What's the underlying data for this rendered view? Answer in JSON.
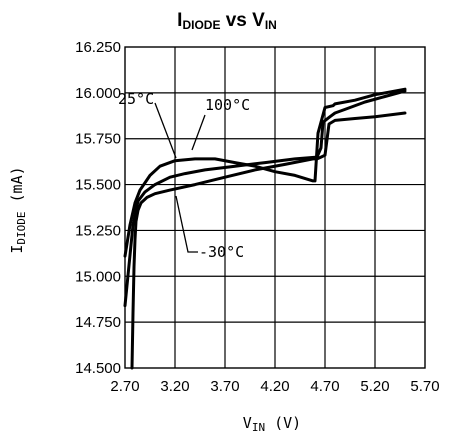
{
  "chart_data": {
    "type": "line",
    "title": {
      "main": "I",
      "sub": "DIODE",
      "mid": " vs V",
      "sub2": "IN"
    },
    "ylabel": {
      "main": "I",
      "sub": "DIODE",
      "unit": " (mA)"
    },
    "xlabel": {
      "main": "V",
      "sub": "IN",
      "unit": "  (V)"
    },
    "x_ticks": [
      2.7,
      3.2,
      3.7,
      4.2,
      4.7,
      5.2,
      5.7
    ],
    "x_tick_labels": [
      "2.70",
      "3.20",
      "3.70",
      "4.20",
      "4.70",
      "5.20",
      "5.70"
    ],
    "y_ticks": [
      14.5,
      14.75,
      15.0,
      15.25,
      15.5,
      15.75,
      16.0,
      16.25
    ],
    "y_tick_labels": [
      "14.500",
      "14.750",
      "15.000",
      "15.250",
      "15.500",
      "15.750",
      "16.000",
      "16.250"
    ],
    "xlim": [
      2.7,
      5.7
    ],
    "ylim": [
      14.5,
      16.25
    ],
    "grid": true,
    "series": [
      {
        "name": "25°C",
        "x": [
          2.7,
          2.78,
          2.83,
          2.9,
          3.0,
          3.15,
          3.3,
          3.5,
          3.8,
          4.1,
          4.4,
          4.62,
          4.66,
          4.68,
          4.75,
          4.8,
          4.9,
          5.1,
          5.3,
          5.5
        ],
        "y": [
          14.84,
          15.28,
          15.41,
          15.46,
          15.5,
          15.54,
          15.56,
          15.58,
          15.6,
          15.62,
          15.64,
          15.65,
          15.7,
          15.84,
          15.87,
          15.89,
          15.91,
          15.95,
          15.98,
          16.01
        ]
      },
      {
        "name": "100°C",
        "x": [
          2.7,
          2.75,
          2.8,
          2.85,
          2.95,
          3.05,
          3.2,
          3.4,
          3.6,
          3.8,
          4.0,
          4.2,
          4.4,
          4.58,
          4.6,
          4.63,
          4.7,
          4.78,
          4.8,
          5.0,
          5.2,
          5.5
        ],
        "y": [
          15.11,
          15.28,
          15.4,
          15.47,
          15.55,
          15.6,
          15.63,
          15.64,
          15.64,
          15.62,
          15.6,
          15.57,
          15.55,
          15.52,
          15.52,
          15.78,
          15.92,
          15.93,
          15.94,
          15.96,
          15.99,
          16.02
        ]
      },
      {
        "name": "-30°C",
        "x": [
          2.77,
          2.78,
          2.79,
          2.8,
          2.81,
          2.83,
          2.86,
          2.92,
          3.0,
          3.15,
          3.4,
          3.7,
          4.0,
          4.3,
          4.58,
          4.62,
          4.66,
          4.7,
          4.74,
          4.8,
          5.0,
          5.2,
          5.5
        ],
        "y": [
          14.5,
          14.8,
          15.05,
          15.2,
          15.3,
          15.36,
          15.4,
          15.43,
          15.45,
          15.47,
          15.5,
          15.54,
          15.58,
          15.61,
          15.64,
          15.64,
          15.65,
          15.66,
          15.83,
          15.85,
          15.86,
          15.87,
          15.89
        ]
      }
    ],
    "annotations": [
      {
        "text": "25°C",
        "target": [
          3.28,
          15.56
        ]
      },
      {
        "text": "100°C",
        "target": [
          3.4,
          15.64
        ]
      },
      {
        "text": "-30°C",
        "target": [
          3.28,
          15.47
        ]
      }
    ]
  }
}
